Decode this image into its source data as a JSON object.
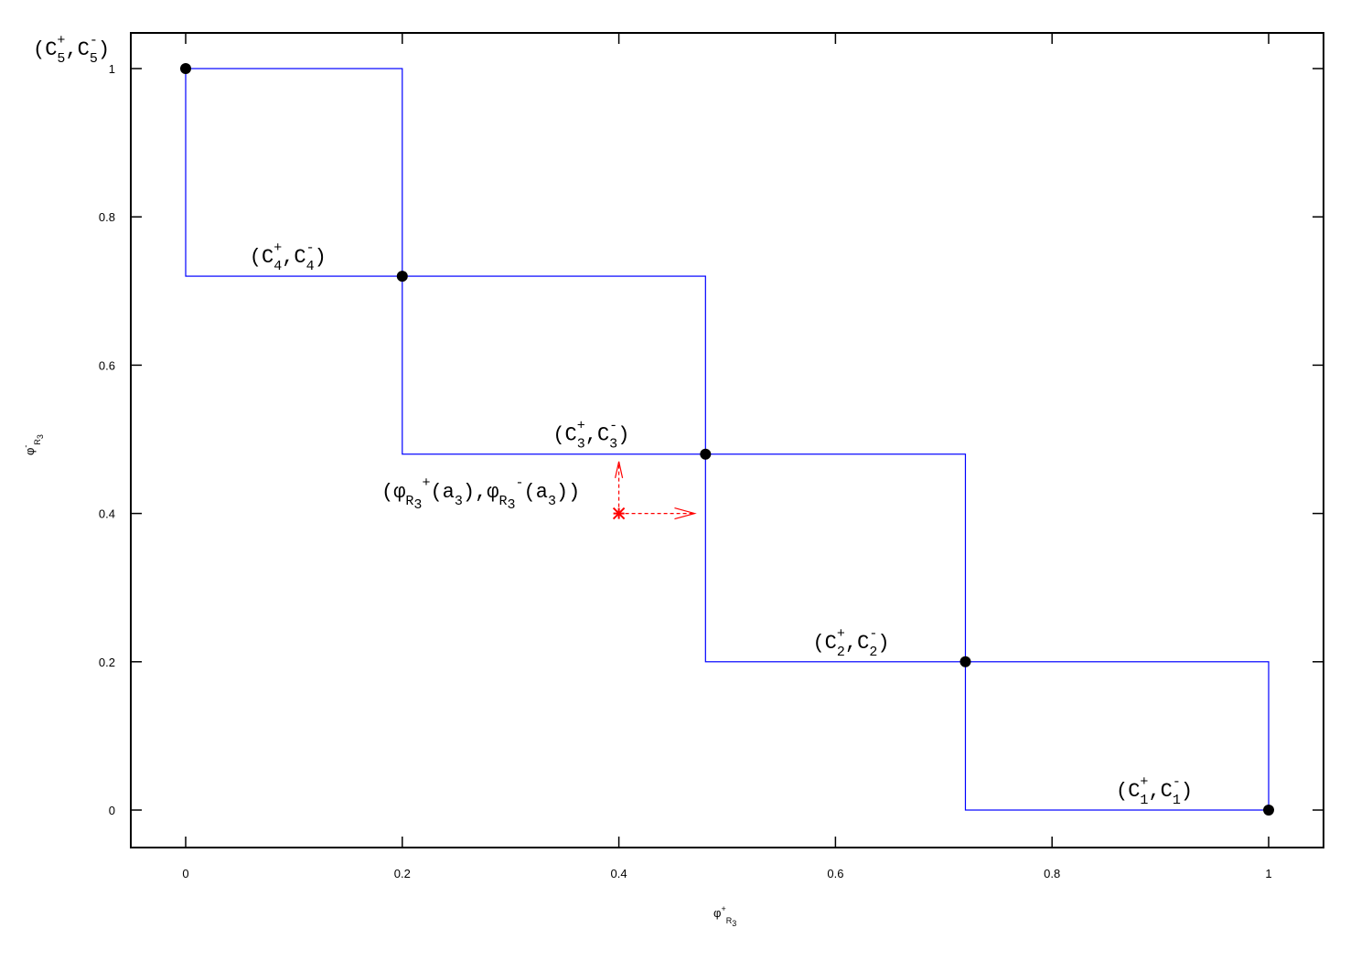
{
  "chart_data": {
    "type": "line",
    "xlabel": {
      "base": "φ",
      "sup": "+",
      "sub": "R",
      "subsub": "3"
    },
    "ylabel": {
      "base": "φ",
      "sup": "-",
      "sub": "R",
      "subsub": "3"
    },
    "xlim": [
      -0.1,
      1.05
    ],
    "ylim": [
      -0.05,
      1.05
    ],
    "x_ticks": [
      0,
      0.2,
      0.4,
      0.6,
      0.8,
      1
    ],
    "x_tick_labels": [
      "0",
      "0.2",
      "0.4",
      "0.6",
      "0.8",
      "1"
    ],
    "y_ticks": [
      0,
      0.2,
      0.4,
      0.6,
      0.8,
      1
    ],
    "y_tick_labels": [
      "0",
      "0.2",
      "0.4",
      "0.6",
      "0.8",
      "1"
    ],
    "grid": false,
    "series": [
      {
        "type": "step-boxes",
        "color": "#0000ff",
        "boxes": [
          {
            "x": [
              0,
              0.2
            ],
            "y": [
              0.72,
              1
            ]
          },
          {
            "x": [
              0.2,
              0.48
            ],
            "y": [
              0.48,
              0.72
            ]
          },
          {
            "x": [
              0.48,
              0.72
            ],
            "y": [
              0.2,
              0.48
            ]
          },
          {
            "x": [
              0.72,
              1
            ],
            "y": [
              0,
              0.2
            ]
          }
        ]
      }
    ],
    "points": [
      {
        "x": 0,
        "y": 1,
        "label": {
          "sup": "+",
          "sub1": "5",
          "sup2": "-",
          "sub2": "5"
        }
      },
      {
        "x": 0.2,
        "y": 0.72,
        "label": {
          "sup": "+",
          "sub1": "4",
          "sup2": "-",
          "sub2": "4"
        }
      },
      {
        "x": 0.48,
        "y": 0.48,
        "label": {
          "sup": "+",
          "sub1": "3",
          "sup2": "-",
          "sub2": "3"
        }
      },
      {
        "x": 0.72,
        "y": 0.2,
        "label": {
          "sup": "+",
          "sub1": "2",
          "sup2": "-",
          "sub2": "2"
        }
      },
      {
        "x": 1,
        "y": 0,
        "label": {
          "sup": "+",
          "sub1": "1",
          "sup2": "-",
          "sub2": "1"
        }
      }
    ],
    "label_text": {
      "open": "(C",
      "comma": ",C",
      "close": ")"
    },
    "query_point": {
      "x": 0.4,
      "y": 0.4,
      "color": "#ff0000",
      "arrow_right_to_x": 0.47,
      "arrow_up_to_y": 0.47,
      "label": {
        "open": "(φ",
        "sub": "R",
        "subsub": "3",
        "sup": "+",
        "mid": "(a",
        "arg_sub": "3",
        "comma": "),φ",
        "sub2": "R",
        "subsub2": "3",
        "sup2": "-",
        "mid2": "(a",
        "arg_sub2": "3",
        "close": "))"
      }
    }
  }
}
